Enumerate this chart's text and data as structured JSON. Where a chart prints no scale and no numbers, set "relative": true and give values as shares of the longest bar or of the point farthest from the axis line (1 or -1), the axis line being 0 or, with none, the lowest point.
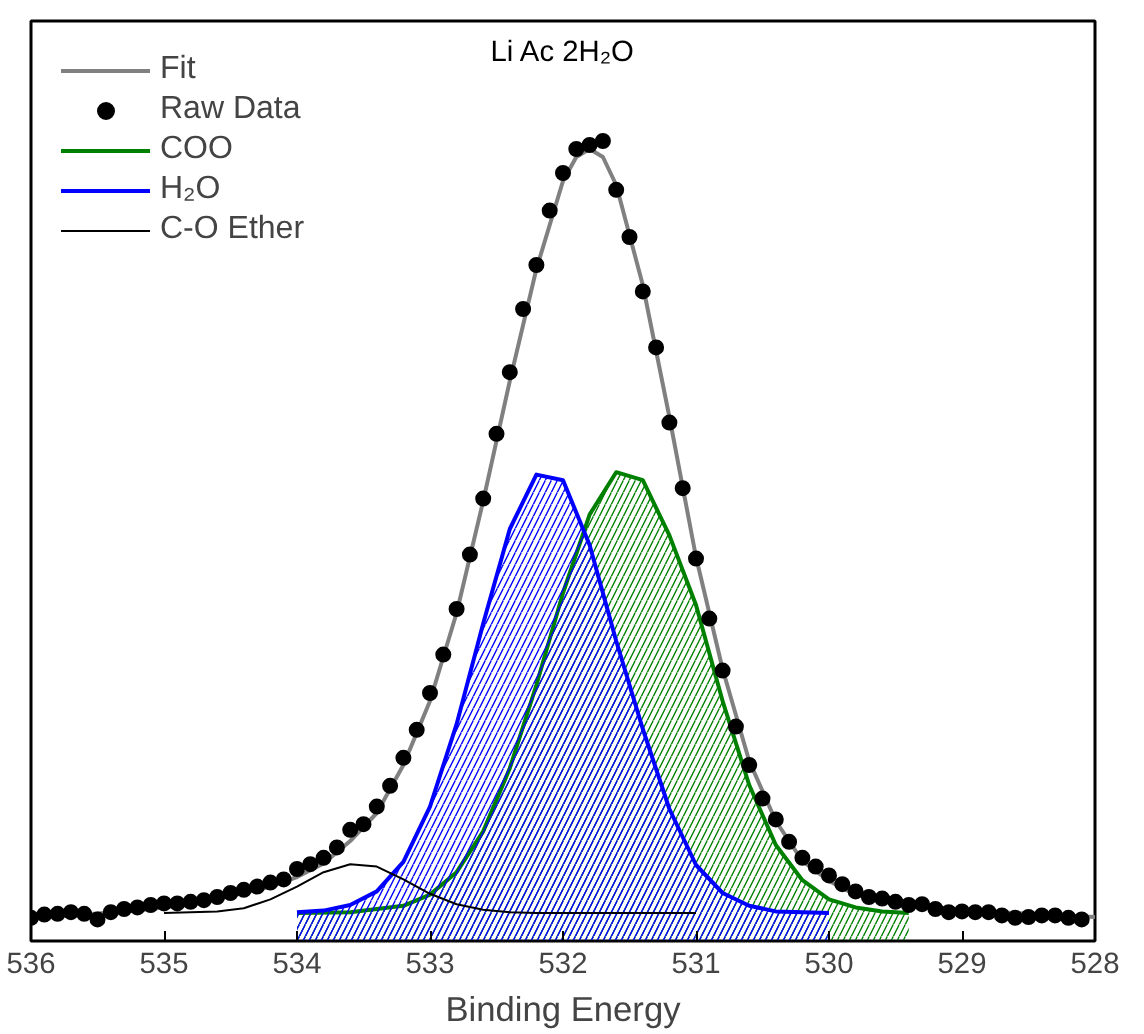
{
  "chart_data": {
    "type": "line",
    "title": "Li Ac 2H₂O",
    "xlabel": "Binding Energy",
    "relative": true,
    "xlim": [
      536,
      528
    ],
    "xticks": [
      536,
      535,
      534,
      533,
      532,
      531,
      530,
      529,
      528
    ],
    "legend": "top left",
    "grid": false,
    "series": [
      {
        "name": "Fit",
        "color": "#808080",
        "x": [
          536.0,
          535.6,
          535.2,
          534.8,
          534.4,
          534.2,
          534.0,
          533.8,
          533.6,
          533.4,
          533.2,
          533.0,
          532.8,
          532.6,
          532.4,
          532.2,
          532.0,
          531.9,
          531.8,
          531.7,
          531.6,
          531.4,
          531.2,
          531.0,
          530.8,
          530.6,
          530.4,
          530.2,
          530.0,
          529.8,
          529.6,
          529.2,
          528.8,
          528.4,
          528.0
        ],
        "values": [
          0.03,
          0.033,
          0.038,
          0.046,
          0.06,
          0.068,
          0.08,
          0.097,
          0.125,
          0.16,
          0.22,
          0.3,
          0.41,
          0.55,
          0.7,
          0.84,
          0.95,
          0.98,
          0.99,
          0.98,
          0.945,
          0.82,
          0.655,
          0.48,
          0.34,
          0.225,
          0.15,
          0.1,
          0.075,
          0.058,
          0.05,
          0.042,
          0.037,
          0.033,
          0.03
        ]
      },
      {
        "name": "Raw Data",
        "type": "scatter",
        "marker": "circle",
        "color": "#000000",
        "x": [
          536.0,
          535.9,
          535.8,
          535.7,
          535.6,
          535.5,
          535.4,
          535.3,
          535.2,
          535.1,
          535.0,
          534.9,
          534.8,
          534.7,
          534.6,
          534.5,
          534.4,
          534.3,
          534.2,
          534.1,
          534.0,
          533.9,
          533.8,
          533.7,
          533.6,
          533.5,
          533.4,
          533.3,
          533.2,
          533.1,
          533.0,
          532.9,
          532.8,
          532.7,
          532.6,
          532.5,
          532.4,
          532.3,
          532.2,
          532.1,
          532.0,
          531.9,
          531.8,
          531.7,
          531.6,
          531.5,
          531.4,
          531.3,
          531.2,
          531.1,
          531.0,
          530.9,
          530.8,
          530.7,
          530.6,
          530.5,
          530.4,
          530.3,
          530.2,
          530.1,
          530.0,
          529.9,
          529.8,
          529.7,
          529.6,
          529.5,
          529.4,
          529.3,
          529.2,
          529.1,
          529.0,
          528.9,
          528.8,
          528.7,
          528.6,
          528.5,
          528.4,
          528.3,
          528.2,
          528.1
        ],
        "values": [
          0.029,
          0.033,
          0.034,
          0.036,
          0.034,
          0.027,
          0.036,
          0.04,
          0.042,
          0.045,
          0.047,
          0.047,
          0.049,
          0.051,
          0.055,
          0.06,
          0.064,
          0.068,
          0.073,
          0.077,
          0.09,
          0.096,
          0.104,
          0.117,
          0.139,
          0.146,
          0.168,
          0.194,
          0.229,
          0.264,
          0.31,
          0.358,
          0.415,
          0.483,
          0.553,
          0.634,
          0.711,
          0.79,
          0.845,
          0.913,
          0.96,
          0.99,
          0.995,
          1.0,
          0.939,
          0.88,
          0.812,
          0.742,
          0.648,
          0.566,
          0.478,
          0.403,
          0.338,
          0.268,
          0.22,
          0.178,
          0.152,
          0.124,
          0.104,
          0.093,
          0.082,
          0.071,
          0.062,
          0.055,
          0.053,
          0.049,
          0.045,
          0.046,
          0.04,
          0.036,
          0.037,
          0.036,
          0.036,
          0.032,
          0.029,
          0.03,
          0.032,
          0.032,
          0.029,
          0.027
        ]
      },
      {
        "name": "COO",
        "type": "area",
        "color": "#008000",
        "x": [
          534.0,
          533.6,
          533.2,
          533.0,
          532.8,
          532.6,
          532.4,
          532.2,
          532.0,
          531.8,
          531.6,
          531.4,
          531.2,
          531.0,
          530.8,
          530.6,
          530.4,
          530.2,
          530.0,
          529.8,
          529.6,
          529.4
        ],
        "values": [
          0.035,
          0.036,
          0.044,
          0.058,
          0.086,
          0.137,
          0.216,
          0.32,
          0.435,
          0.533,
          0.586,
          0.576,
          0.507,
          0.42,
          0.3,
          0.195,
          0.12,
          0.076,
          0.052,
          0.042,
          0.037,
          0.035
        ]
      },
      {
        "name": "H₂O",
        "type": "area",
        "color": "#0000ff",
        "x": [
          534.0,
          533.8,
          533.6,
          533.4,
          533.2,
          533.0,
          532.8,
          532.6,
          532.4,
          532.2,
          532.0,
          531.8,
          531.6,
          531.4,
          531.2,
          531.0,
          530.8,
          530.6,
          530.4,
          530.2,
          530.0
        ],
        "values": [
          0.036,
          0.038,
          0.045,
          0.062,
          0.099,
          0.168,
          0.271,
          0.397,
          0.515,
          0.583,
          0.576,
          0.495,
          0.375,
          0.265,
          0.165,
          0.095,
          0.06,
          0.044,
          0.037,
          0.036,
          0.035
        ]
      },
      {
        "name": "C-O Ether",
        "color": "#000000",
        "x": [
          535.0,
          534.6,
          534.4,
          534.2,
          534.0,
          533.8,
          533.6,
          533.4,
          533.2,
          533.0,
          532.8,
          532.6,
          532.4,
          532.2,
          531.8,
          531.0
        ],
        "values": [
          0.035,
          0.037,
          0.041,
          0.052,
          0.068,
          0.086,
          0.096,
          0.093,
          0.077,
          0.059,
          0.046,
          0.039,
          0.036,
          0.035,
          0.035,
          0.035
        ]
      }
    ]
  }
}
